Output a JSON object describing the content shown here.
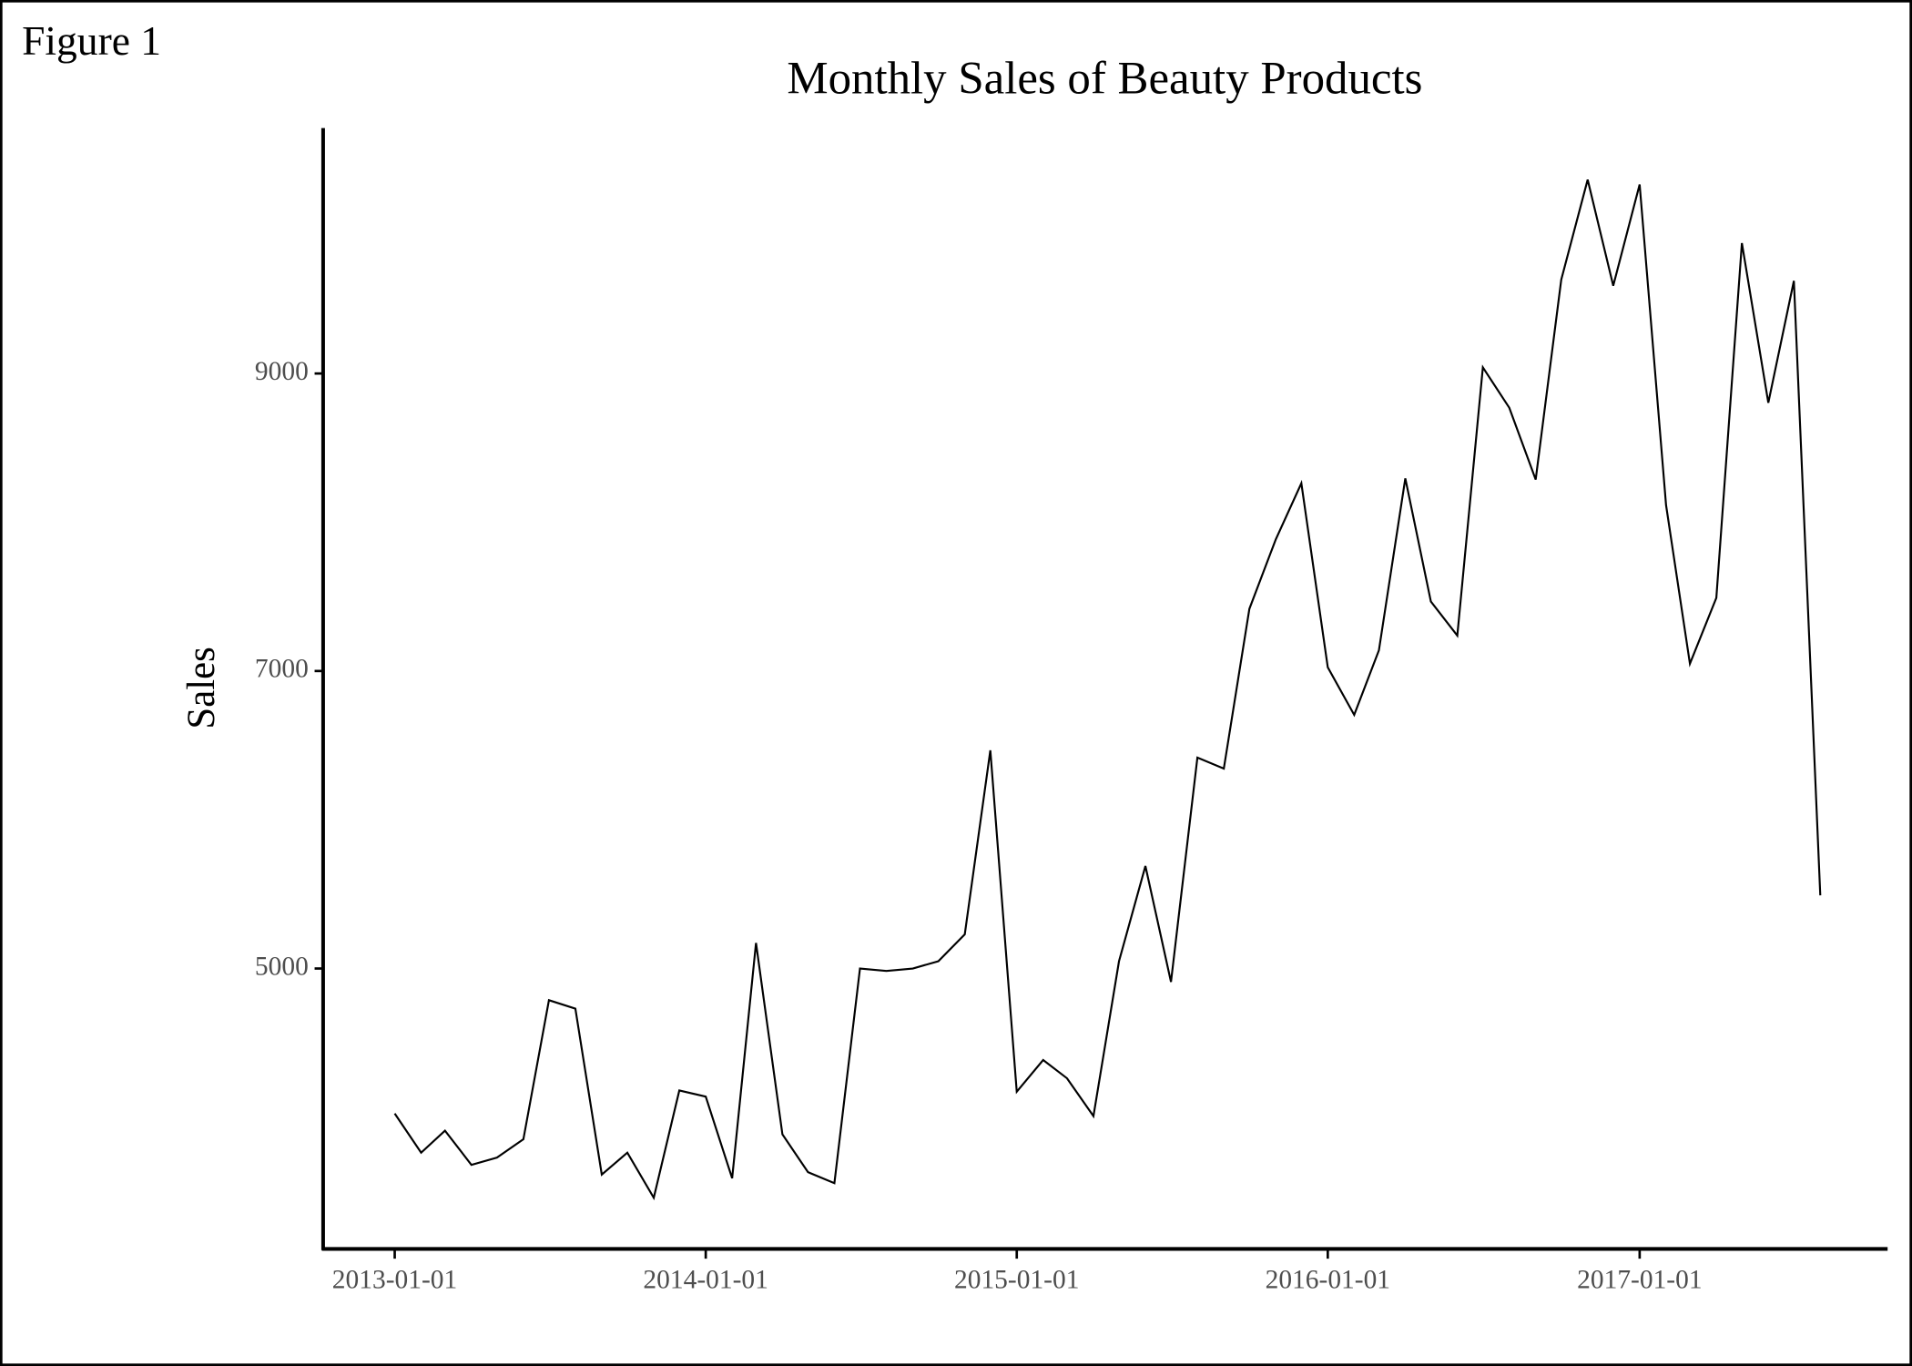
{
  "figure_label": "Figure 1",
  "chart_data": {
    "type": "line",
    "title": "Monthly Sales of Beauty Products",
    "ylabel": "Sales",
    "x": [
      "2013-01-01",
      "2013-02-01",
      "2013-03-01",
      "2013-04-01",
      "2013-05-01",
      "2013-06-01",
      "2013-07-01",
      "2013-08-01",
      "2013-09-01",
      "2013-10-01",
      "2013-11-01",
      "2013-12-01",
      "2014-01-01",
      "2014-02-01",
      "2014-03-01",
      "2014-04-01",
      "2014-05-01",
      "2014-06-01",
      "2014-07-01",
      "2014-08-01",
      "2014-09-01",
      "2014-10-01",
      "2014-11-01",
      "2014-12-01",
      "2015-01-01",
      "2015-02-01",
      "2015-03-01",
      "2015-04-01",
      "2015-05-01",
      "2015-06-01",
      "2015-07-01",
      "2015-08-01",
      "2015-09-01",
      "2015-10-01",
      "2015-11-01",
      "2015-12-01",
      "2016-01-01",
      "2016-02-01",
      "2016-03-01",
      "2016-04-01",
      "2016-05-01",
      "2016-06-01",
      "2016-07-01",
      "2016-08-01",
      "2016-09-01",
      "2016-10-01",
      "2016-11-01",
      "2016-12-01",
      "2017-01-01",
      "2017-02-01",
      "2017-03-01",
      "2017-04-01",
      "2017-05-01",
      "2017-06-01",
      "2017-07-01",
      "2017-08-01"
    ],
    "values": [
      4025,
      3762,
      3910,
      3680,
      3729,
      3852,
      4787,
      4730,
      3615,
      3762,
      3459,
      4180,
      4139,
      3590,
      5172,
      3885,
      3631,
      3557,
      5000,
      4984,
      5000,
      5049,
      5230,
      6467,
      4172,
      4385,
      4262,
      4008,
      5049,
      5689,
      4910,
      6418,
      6344,
      7418,
      7885,
      8262,
      7025,
      6705,
      7139,
      8295,
      7467,
      7238,
      9041,
      8770,
      8287,
      9631,
      10303,
      9590,
      10271,
      8115,
      7049,
      7492,
      9877,
      8803,
      9623,
      5492
    ],
    "color": "#000000",
    "xlim": [
      "2012-10-09",
      "2017-10-19"
    ],
    "xticks": [
      "2013-01-01",
      "2014-01-01",
      "2015-01-01",
      "2016-01-01",
      "2017-01-01"
    ],
    "ylim": [
      3115,
      10650
    ],
    "yticks": [
      5000,
      7000,
      9000
    ],
    "grid": false
  }
}
